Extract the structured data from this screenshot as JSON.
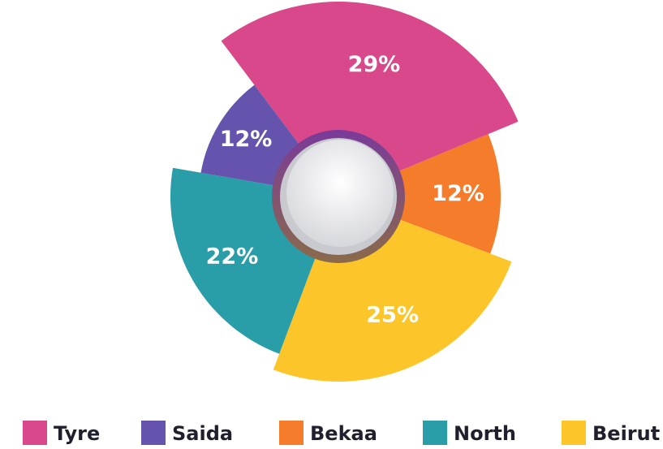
{
  "chart_data": {
    "type": "pie",
    "categories": [
      "Tyre",
      "Bekaa",
      "Beirut",
      "North",
      "Saida"
    ],
    "values": [
      29,
      12,
      25,
      22,
      12
    ],
    "value_labels": [
      "29%",
      "12%",
      "25%",
      "22%",
      "12%"
    ],
    "colors": [
      "#d9488a",
      "#f57c2b",
      "#fcc52a",
      "#2a9ea8",
      "#6553ad"
    ],
    "legend_order": [
      "Tyre",
      "Saida",
      "Bekaa",
      "North",
      "Beirut"
    ],
    "legend": "bottom"
  }
}
